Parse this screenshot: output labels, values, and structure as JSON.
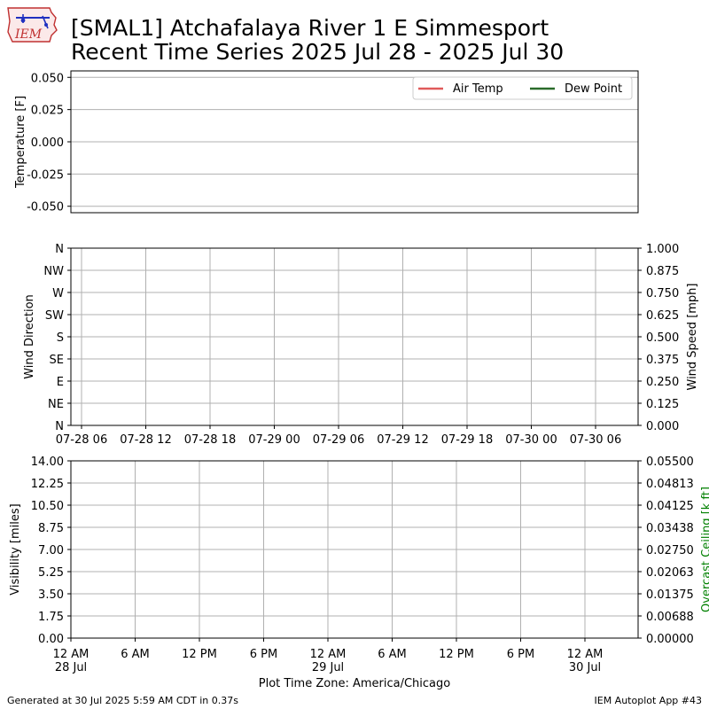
{
  "header": {
    "logo_text": "IEM",
    "title_line1": "[SMAL1] Atchafalaya River 1 E Simmesport",
    "title_line2": "Recent Time Series 2025 Jul 28 - 2025 Jul 30"
  },
  "footer": {
    "generated": "Generated at 30 Jul 2025 5:59 AM CDT in 0.37s",
    "app": "IEM Autoplot App #43"
  },
  "colors": {
    "air_temp": "#e05a5a",
    "dew_point": "#2a6b2a",
    "grid": "#b0b0b0",
    "ceiling_label": "#008000"
  },
  "chart_data": [
    {
      "type": "line",
      "ylabel": "Temperature [F]",
      "ylim": [
        -0.055,
        0.055
      ],
      "yticks": [
        "0.050",
        "0.025",
        "0.000",
        "-0.025",
        "-0.050"
      ],
      "ytick_values": [
        0.05,
        0.025,
        0,
        -0.025,
        -0.05
      ],
      "grid": true,
      "legend_position": "top-right",
      "series": [
        {
          "name": "Air Temp",
          "color": "#e05a5a",
          "values": []
        },
        {
          "name": "Dew Point",
          "color": "#2a6b2a",
          "values": []
        }
      ]
    },
    {
      "type": "line",
      "ylabel": "Wind Direction",
      "y_categories": [
        "N",
        "NE",
        "E",
        "SE",
        "S",
        "SW",
        "W",
        "NW",
        "N"
      ],
      "y2label": "Wind Speed [mph]",
      "y2lim": [
        0,
        1
      ],
      "y2ticks": [
        "0.000",
        "0.125",
        "0.250",
        "0.375",
        "0.500",
        "0.625",
        "0.750",
        "0.875",
        "1.000"
      ],
      "xticks": [
        "07-28 06",
        "07-28 12",
        "07-28 18",
        "07-29 00",
        "07-29 06",
        "07-29 12",
        "07-29 18",
        "07-30 00",
        "07-30 06"
      ],
      "grid": true,
      "series": []
    },
    {
      "type": "line",
      "ylabel": "Visibility [miles]",
      "ylim": [
        0,
        14
      ],
      "yticks": [
        "0.00",
        "1.75",
        "3.50",
        "5.25",
        "7.00",
        "8.75",
        "10.50",
        "12.25",
        "14.00"
      ],
      "y2label": "Overcast Ceiling [k ft]",
      "y2lim": [
        0,
        0.055
      ],
      "y2ticks": [
        "0.00000",
        "0.00688",
        "0.01375",
        "0.02063",
        "0.02750",
        "0.03438",
        "0.04125",
        "0.04813",
        "0.05500"
      ],
      "xticks_line1": [
        "12 AM",
        "6 AM",
        "12 PM",
        "6 PM",
        "12 AM",
        "6 AM",
        "12 PM",
        "6 PM",
        "12 AM"
      ],
      "xticks_line2": [
        "28 Jul",
        "",
        "",
        "",
        "29 Jul",
        "",
        "",
        "",
        "30 Jul"
      ],
      "xlabel": "Plot Time Zone: America/Chicago",
      "grid": true,
      "series": []
    }
  ]
}
